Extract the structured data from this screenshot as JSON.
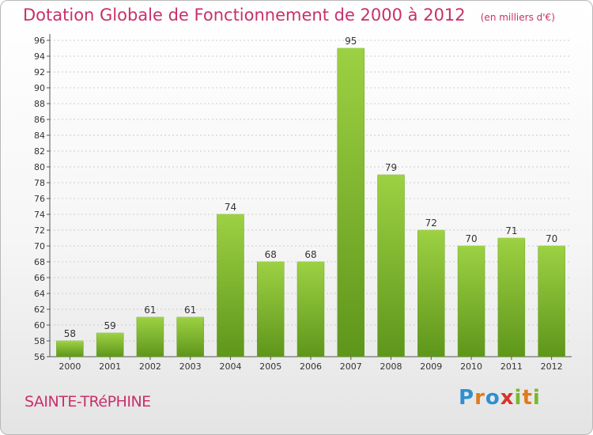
{
  "title": "Dotation Globale de Fonctionnement de 2000 à 2012",
  "subtitle": "(en milliers d'€)",
  "place": "SAINTE-TRéPHINE",
  "brand": {
    "letters": [
      "P",
      "r",
      "o",
      "x",
      "i",
      "t",
      "i"
    ],
    "colors": [
      "#2f8fd0",
      "#e07a1f",
      "#2f8fd0",
      "#d6342b",
      "#7ab829",
      "#e07a1f",
      "#7ab829"
    ]
  },
  "colors": {
    "bar": "#7cba2a",
    "bar_light": "#9dd143",
    "bar_dark": "#5e961b",
    "title": "#c8306a",
    "axis": "#555555",
    "grid": "#cccccc"
  },
  "chart_data": {
    "type": "bar",
    "categories": [
      "2000",
      "2001",
      "2002",
      "2003",
      "2004",
      "2005",
      "2006",
      "2007",
      "2008",
      "2009",
      "2010",
      "2011",
      "2012"
    ],
    "values": [
      58,
      59,
      61,
      61,
      74,
      68,
      68,
      95,
      79,
      72,
      70,
      71,
      70
    ],
    "ylim": [
      56,
      96
    ],
    "yticks": [
      56,
      58,
      60,
      62,
      64,
      66,
      68,
      70,
      72,
      74,
      76,
      78,
      80,
      82,
      84,
      86,
      88,
      90,
      92,
      94,
      96
    ],
    "grid": true,
    "data_labels": true
  }
}
